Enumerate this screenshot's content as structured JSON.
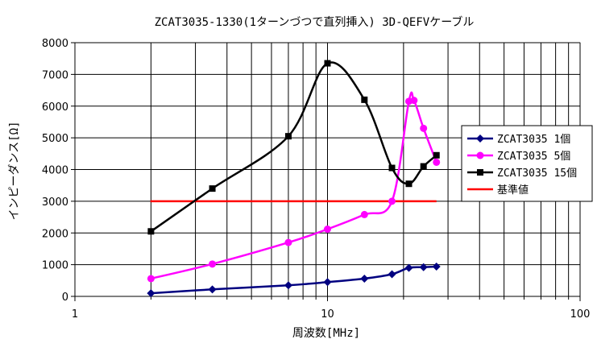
{
  "chart_data": {
    "type": "line",
    "title": "ZCAT3035-1330(1ターンづつで直列挿入) 3D-QEFVケーブル",
    "xlabel": "周波数[MHz]",
    "ylabel": "インピーダンス[Ω]",
    "x_scale": "log",
    "xlim": [
      1,
      100
    ],
    "ylim": [
      0,
      8000
    ],
    "x_ticks": [
      1,
      10,
      100
    ],
    "x_tick_labels": [
      "1",
      "10",
      "100"
    ],
    "y_ticks": [
      0,
      1000,
      2000,
      3000,
      4000,
      5000,
      6000,
      7000,
      8000
    ],
    "y_tick_labels": [
      "0",
      "1000",
      "2000",
      "3000",
      "4000",
      "5000",
      "6000",
      "7000",
      "8000"
    ],
    "grid": true,
    "legend_position": "right",
    "series": [
      {
        "name": "ZCAT3035 1個",
        "color": "#000080",
        "marker": "diamond",
        "x": [
          2,
          3.5,
          7,
          10,
          14,
          18,
          21,
          24,
          27
        ],
        "y": [
          100,
          220,
          350,
          450,
          560,
          700,
          900,
          920,
          940
        ]
      },
      {
        "name": "ZCAT3035 5個",
        "color": "#ff00ff",
        "marker": "circle",
        "x": [
          2,
          3.5,
          7,
          10,
          14,
          18,
          21,
          22,
          24,
          27
        ],
        "y": [
          560,
          1020,
          1700,
          2120,
          2580,
          3000,
          6150,
          6180,
          5300,
          4230
        ]
      },
      {
        "name": "ZCAT3035 15個",
        "color": "#000000",
        "marker": "square",
        "x": [
          2,
          3.5,
          7,
          10,
          14,
          18,
          21,
          24,
          27
        ],
        "y": [
          2050,
          3400,
          5050,
          7350,
          6200,
          4050,
          3550,
          4100,
          4450
        ]
      },
      {
        "name": "基準値",
        "color": "#ff0000",
        "marker": "none",
        "x": [
          1.99,
          27
        ],
        "y": [
          3000,
          3000
        ]
      }
    ]
  }
}
